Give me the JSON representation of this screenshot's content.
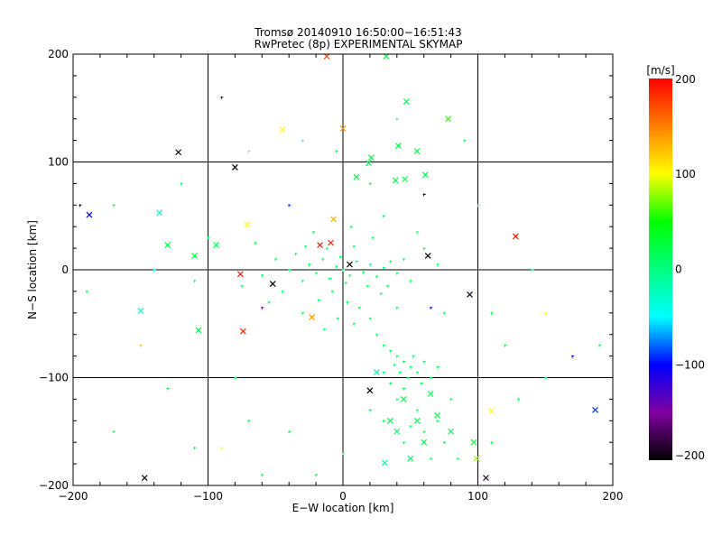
{
  "chart_data": {
    "type": "scatter",
    "title": [
      "Tromsø 20140910 16:50:00−16:51:43",
      "RwPretec (8p) EXPERIMENTAL SKYMAP"
    ],
    "xlabel": "E−W location [km]",
    "ylabel": "N−S location [km]",
    "xlim": [
      -200,
      200
    ],
    "ylim": [
      -200,
      200
    ],
    "xticks": [
      "−200",
      "−100",
      "0",
      "100",
      "200"
    ],
    "yticks": [
      "−200",
      "−100",
      "0",
      "100",
      "200"
    ],
    "grid": true,
    "colorbar": {
      "label": "[m/s]",
      "range": [
        -200,
        200
      ],
      "ticks": [
        "200",
        "100",
        "0",
        "−100",
        "−200"
      ],
      "colors": [
        "#000000",
        "#8000a0",
        "#0000ff",
        "#00ffff",
        "#00ff80",
        "#00ff00",
        "#ffff00",
        "#ff8000",
        "#ff0000"
      ]
    },
    "crosses": [
      [
        -12,
        198,
        170
      ],
      [
        32,
        198,
        30
      ],
      [
        0,
        131,
        140
      ],
      [
        -45,
        130,
        100
      ],
      [
        78,
        140,
        60
      ],
      [
        47,
        156,
        20
      ],
      [
        -122,
        109,
        -200
      ],
      [
        -80,
        95,
        -200
      ],
      [
        41,
        115,
        20
      ],
      [
        55,
        110,
        20
      ],
      [
        21,
        104,
        20
      ],
      [
        19,
        99,
        20
      ],
      [
        10,
        86,
        20
      ],
      [
        61,
        88,
        20
      ],
      [
        46,
        84,
        20
      ],
      [
        39,
        83,
        20
      ],
      [
        -188,
        51,
        -100
      ],
      [
        -136,
        53,
        -30
      ],
      [
        -130,
        23,
        20
      ],
      [
        -110,
        13,
        20
      ],
      [
        -94,
        23,
        20
      ],
      [
        128,
        31,
        190
      ],
      [
        -71,
        42,
        100
      ],
      [
        -7,
        47,
        130
      ],
      [
        -17,
        23,
        190
      ],
      [
        -9,
        25,
        190
      ],
      [
        63,
        13,
        -200
      ],
      [
        5,
        5,
        -200
      ],
      [
        -76,
        -4,
        190
      ],
      [
        -74,
        -57,
        190
      ],
      [
        -150,
        -38,
        -30
      ],
      [
        -107,
        -56,
        20
      ],
      [
        -23,
        -44,
        140
      ],
      [
        -52,
        -13,
        -200
      ],
      [
        94,
        -23,
        -190
      ],
      [
        20,
        -112,
        -200
      ],
      [
        -147,
        -193,
        -200
      ],
      [
        187,
        -130,
        -90
      ],
      [
        110,
        -131,
        100
      ],
      [
        99,
        -175,
        80
      ],
      [
        97,
        -160,
        30
      ],
      [
        31,
        -179,
        -20
      ],
      [
        106,
        -193,
        -190
      ],
      [
        45,
        -120,
        20
      ],
      [
        55,
        -140,
        15
      ],
      [
        60,
        -160,
        20
      ],
      [
        40,
        -150,
        10
      ],
      [
        70,
        -135,
        20
      ],
      [
        50,
        -175,
        15
      ],
      [
        65,
        -115,
        10
      ],
      [
        35,
        -140,
        20
      ],
      [
        25,
        -95,
        -20
      ],
      [
        80,
        -150,
        15
      ]
    ],
    "dots": [
      [
        -25,
        5,
        20
      ],
      [
        -20,
        -3,
        10
      ],
      [
        -15,
        10,
        15
      ],
      [
        -10,
        -8,
        5
      ],
      [
        -5,
        3,
        10
      ],
      [
        0,
        0,
        15
      ],
      [
        5,
        -5,
        20
      ],
      [
        10,
        8,
        10
      ],
      [
        15,
        -2,
        15
      ],
      [
        20,
        5,
        10
      ],
      [
        25,
        -6,
        20
      ],
      [
        30,
        2,
        10
      ],
      [
        35,
        8,
        15
      ],
      [
        40,
        -3,
        20
      ],
      [
        -30,
        -10,
        10
      ],
      [
        -35,
        15,
        20
      ],
      [
        -40,
        0,
        10
      ],
      [
        -12,
        20,
        15
      ],
      [
        8,
        22,
        10
      ],
      [
        18,
        -15,
        20
      ],
      [
        -8,
        -20,
        10
      ],
      [
        3,
        -30,
        15
      ],
      [
        12,
        -35,
        20
      ],
      [
        -18,
        -28,
        10
      ],
      [
        28,
        -22,
        15
      ],
      [
        45,
        10,
        10
      ],
      [
        50,
        -10,
        20
      ],
      [
        -45,
        -20,
        15
      ],
      [
        -50,
        10,
        20
      ],
      [
        -22,
        35,
        10
      ],
      [
        6,
        40,
        15
      ],
      [
        22,
        30,
        20
      ],
      [
        -60,
        -5,
        10
      ],
      [
        60,
        20,
        15
      ],
      [
        -2,
        12,
        10
      ],
      [
        2,
        -12,
        20
      ],
      [
        -28,
        22,
        15
      ],
      [
        33,
        -15,
        10
      ],
      [
        -4,
        -45,
        20
      ],
      [
        -14,
        -55,
        10
      ],
      [
        8,
        -50,
        15
      ],
      [
        -30,
        -40,
        20
      ],
      [
        20,
        -45,
        10
      ],
      [
        40,
        -35,
        15
      ],
      [
        -55,
        -30,
        10
      ],
      [
        -65,
        25,
        20
      ],
      [
        55,
        35,
        10
      ],
      [
        70,
        5,
        15
      ],
      [
        -75,
        -15,
        20
      ],
      [
        75,
        -40,
        10
      ],
      [
        25,
        -60,
        15
      ],
      [
        30,
        -70,
        20
      ],
      [
        35,
        -75,
        10
      ],
      [
        40,
        -80,
        15
      ],
      [
        45,
        -85,
        20
      ],
      [
        50,
        -90,
        10
      ],
      [
        55,
        -95,
        15
      ],
      [
        48,
        -100,
        20
      ],
      [
        42,
        -95,
        10
      ],
      [
        38,
        -88,
        15
      ],
      [
        52,
        -80,
        20
      ],
      [
        60,
        -85,
        10
      ],
      [
        58,
        -105,
        15
      ],
      [
        45,
        -110,
        20
      ],
      [
        35,
        -105,
        10
      ],
      [
        65,
        -100,
        15
      ],
      [
        70,
        -90,
        20
      ],
      [
        30,
        -95,
        10
      ],
      [
        40,
        -120,
        15
      ],
      [
        55,
        -130,
        20
      ],
      [
        50,
        -145,
        10
      ],
      [
        60,
        -150,
        15
      ],
      [
        45,
        -160,
        20
      ],
      [
        70,
        -140,
        10
      ],
      [
        80,
        -120,
        15
      ],
      [
        75,
        -160,
        20
      ],
      [
        65,
        -175,
        10
      ],
      [
        85,
        -175,
        15
      ],
      [
        30,
        -140,
        20
      ],
      [
        20,
        -130,
        10
      ],
      [
        -150,
        -70,
        120
      ],
      [
        -170,
        60,
        20
      ],
      [
        -120,
        80,
        15
      ],
      [
        -90,
        160,
        -180
      ],
      [
        -100,
        30,
        10
      ],
      [
        -130,
        -110,
        20
      ],
      [
        -110,
        -165,
        15
      ],
      [
        -90,
        -165,
        100
      ],
      [
        -170,
        -150,
        10
      ],
      [
        -140,
        0,
        -40
      ],
      [
        120,
        -70,
        20
      ],
      [
        130,
        -120,
        15
      ],
      [
        150,
        -100,
        10
      ],
      [
        140,
        0,
        -30
      ],
      [
        110,
        -40,
        20
      ],
      [
        100,
        60,
        10
      ],
      [
        90,
        120,
        15
      ],
      [
        60,
        70,
        -200
      ],
      [
        40,
        140,
        -30
      ],
      [
        -60,
        -190,
        15
      ],
      [
        -20,
        -190,
        20
      ],
      [
        0,
        -170,
        10
      ],
      [
        -40,
        -150,
        20
      ],
      [
        -80,
        -100,
        15
      ],
      [
        -70,
        -140,
        10
      ],
      [
        110,
        -160,
        20
      ],
      [
        -190,
        -20,
        10
      ],
      [
        -195,
        60,
        -200
      ],
      [
        170,
        -80,
        -100
      ],
      [
        190,
        -70,
        10
      ],
      [
        -60,
        -35,
        -160
      ],
      [
        65,
        -35,
        -120
      ],
      [
        -40,
        60,
        -90
      ],
      [
        20,
        80,
        20
      ],
      [
        -5,
        110,
        10
      ],
      [
        -70,
        110,
        120
      ],
      [
        -30,
        120,
        -50
      ],
      [
        30,
        50,
        15
      ],
      [
        -110,
        -10,
        -10
      ],
      [
        150,
        -40,
        100
      ]
    ]
  }
}
